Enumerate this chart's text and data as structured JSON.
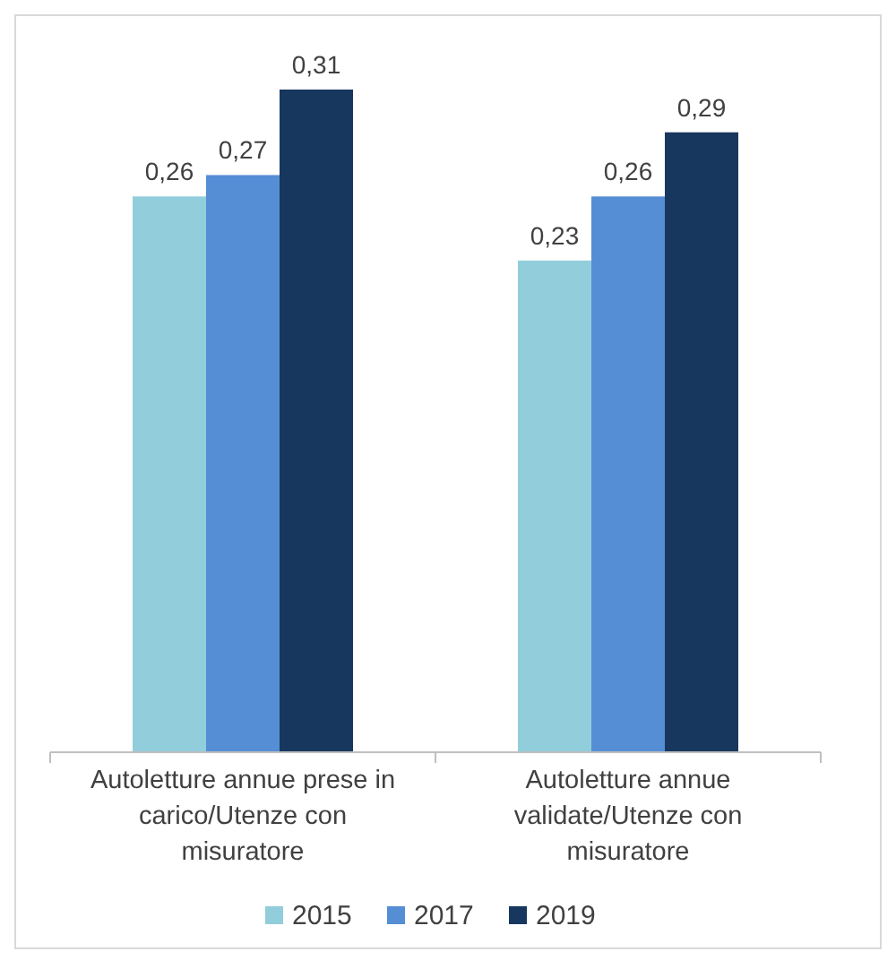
{
  "chart_data": {
    "type": "bar",
    "categories": [
      "Autoletture annue prese in carico/Utenze con misuratore",
      "Autoletture annue validate/Utenze con misuratore"
    ],
    "series": [
      {
        "name": "2015",
        "color": "#92cddc",
        "values": [
          0.26,
          0.23
        ],
        "value_labels": [
          "0,26",
          "0,23"
        ]
      },
      {
        "name": "2017",
        "color": "#558ed5",
        "values": [
          0.27,
          0.26
        ],
        "value_labels": [
          "0,27",
          "0,26"
        ]
      },
      {
        "name": "2019",
        "color": "#17375e",
        "values": [
          0.31,
          0.29
        ],
        "value_labels": [
          "0,31",
          "0,29"
        ]
      }
    ],
    "legend": "bottom"
  }
}
